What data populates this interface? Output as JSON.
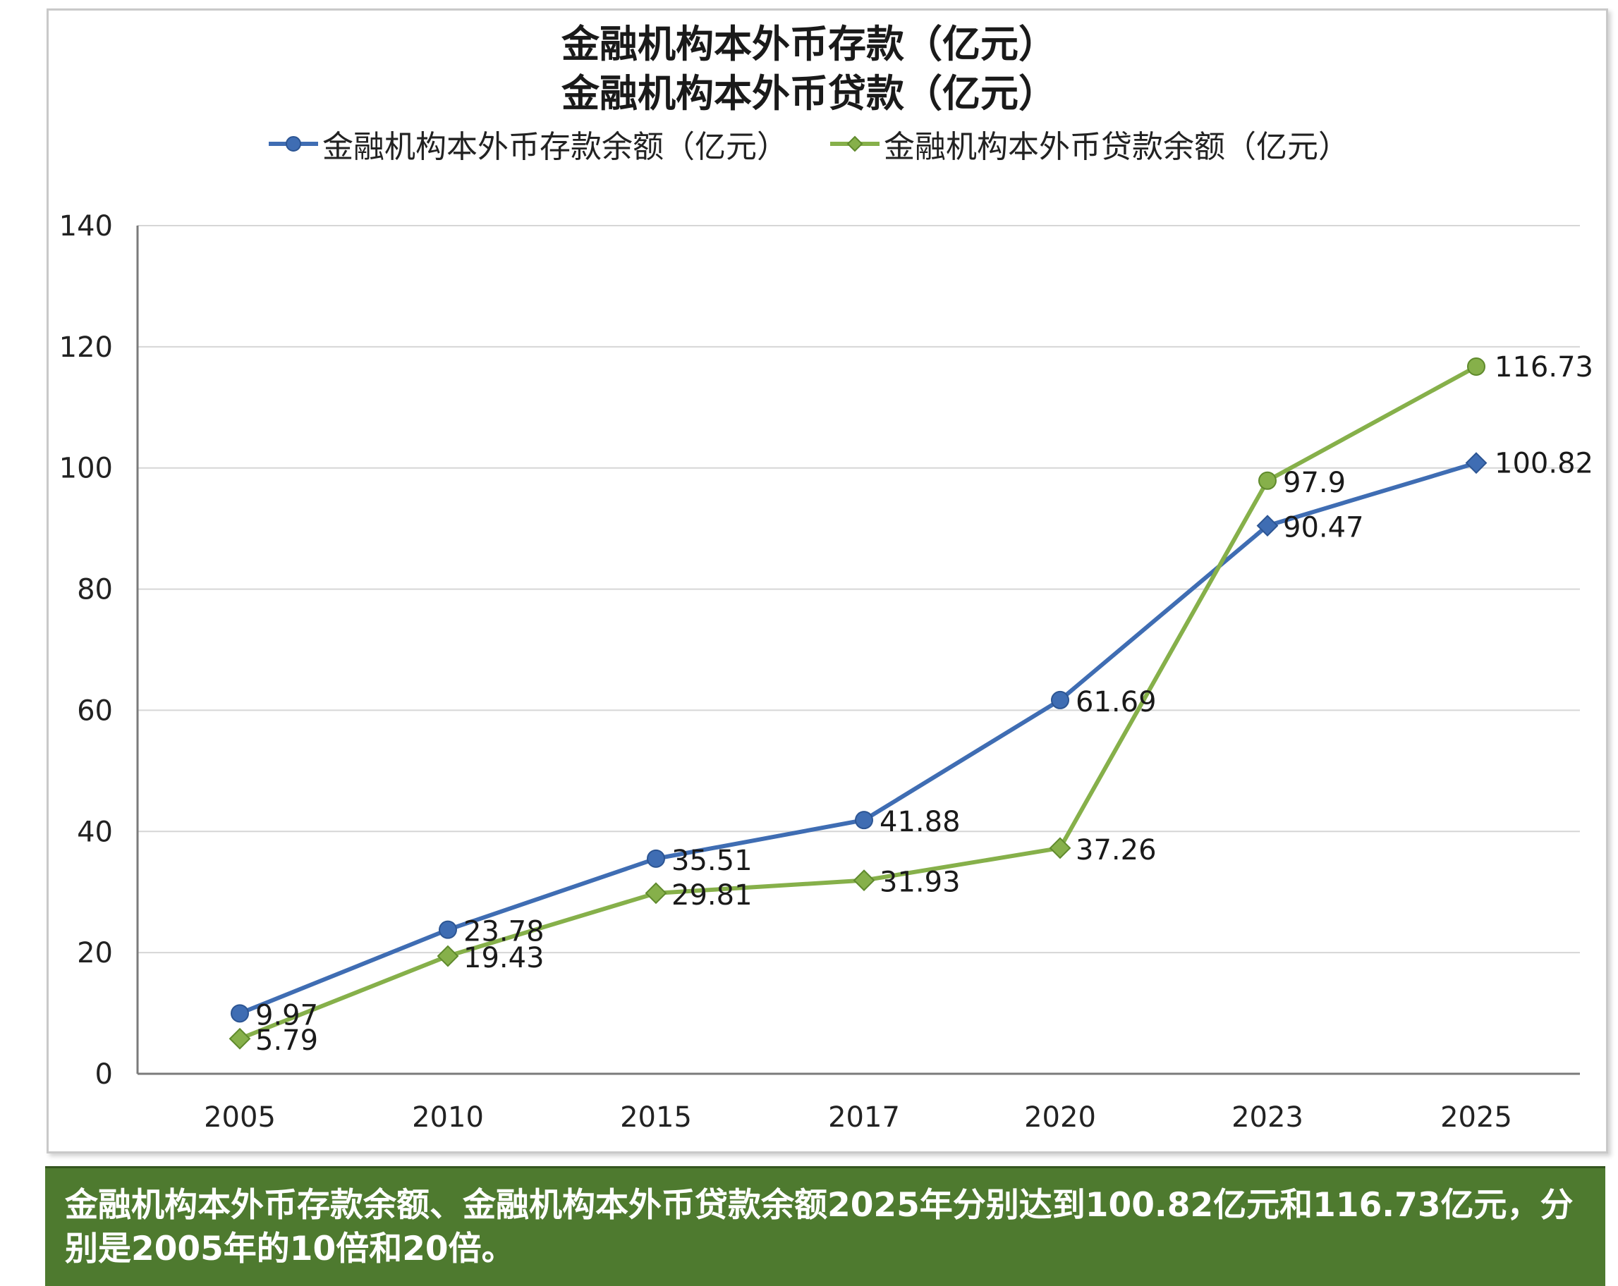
{
  "chart_data": {
    "type": "line",
    "title": "金融机构本外币存款（亿元）",
    "subtitle": "金融机构本外币贷款（亿元）",
    "categories": [
      "2005",
      "2010",
      "2015",
      "2017",
      "2020",
      "2023",
      "2025"
    ],
    "series": [
      {
        "name": "金融机构本外币存款余额（亿元）",
        "color": "#3f6db3",
        "marker": "circle",
        "values": [
          9.97,
          23.78,
          35.51,
          41.88,
          61.69,
          90.47,
          100.82
        ],
        "labels": [
          "9.97",
          "23.78",
          "35.51",
          "41.88",
          "61.69",
          "90.47",
          "100.82"
        ]
      },
      {
        "name": "金融机构本外币贷款余额（亿元）",
        "color": "#86b04a",
        "marker": "diamond",
        "values": [
          5.79,
          19.43,
          29.81,
          31.93,
          37.26,
          97.9,
          116.73
        ],
        "labels": [
          "5.79",
          "19.43",
          "29.81",
          "31.93",
          "37.26",
          "97.9",
          "116.73"
        ]
      }
    ],
    "ylim": [
      0,
      140
    ],
    "yticks": [
      "0",
      "20",
      "40",
      "60",
      "80",
      "100",
      "120",
      "140"
    ],
    "grid": true,
    "legend_position": "top"
  },
  "summary": {
    "text": "金融机构本外币存款余额、金融机构本外币贷款余额2025年分别达到100.82亿元和116.73亿元，分别是2005年的10倍和20倍。",
    "background": "#4e7a2f"
  }
}
